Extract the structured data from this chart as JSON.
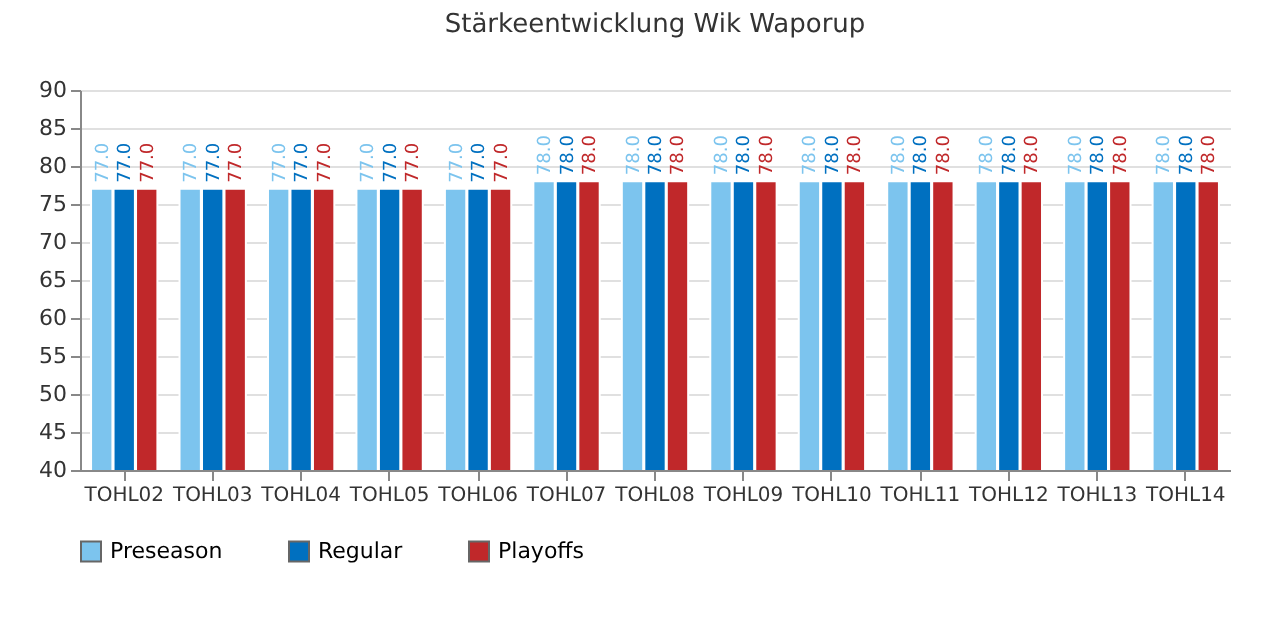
{
  "chart_data": {
    "type": "bar",
    "title": "Stärkeentwicklung Wik Waporup",
    "categories": [
      "TOHL02",
      "TOHL03",
      "TOHL04",
      "TOHL05",
      "TOHL06",
      "TOHL07",
      "TOHL08",
      "TOHL09",
      "TOHL10",
      "TOHL11",
      "TOHL12",
      "TOHL13",
      "TOHL14"
    ],
    "series": [
      {
        "name": "Preseason",
        "color": "#7cc4ee",
        "values": [
          77,
          77,
          77,
          77,
          77,
          78,
          78,
          78,
          78,
          78,
          78,
          78,
          78
        ],
        "value_labels": [
          "77.0",
          "77.0",
          "77.0",
          "77.0",
          "77.0",
          "78.0",
          "78.0",
          "78.0",
          "78.0",
          "78.0",
          "78.0",
          "78.0",
          "78.0"
        ]
      },
      {
        "name": "Regular",
        "color": "#0070c0",
        "values": [
          77,
          77,
          77,
          77,
          77,
          78,
          78,
          78,
          78,
          78,
          78,
          78,
          78
        ],
        "value_labels": [
          "77.0",
          "77.0",
          "77.0",
          "77.0",
          "77.0",
          "78.0",
          "78.0",
          "78.0",
          "78.0",
          "78.0",
          "78.0",
          "78.0",
          "78.0"
        ]
      },
      {
        "name": "Playoffs",
        "color": "#c0282a",
        "values": [
          77,
          77,
          77,
          77,
          77,
          78,
          78,
          78,
          78,
          78,
          78,
          78,
          78
        ],
        "value_labels": [
          "77.0",
          "77.0",
          "77.0",
          "77.0",
          "77.0",
          "78.0",
          "78.0",
          "78.0",
          "78.0",
          "78.0",
          "78.0",
          "78.0",
          "78.0"
        ]
      }
    ],
    "ylim": [
      40,
      90
    ],
    "yticks": [
      40,
      45,
      50,
      55,
      60,
      65,
      70,
      75,
      80,
      85,
      90
    ],
    "grid": "y",
    "legend": "bottom"
  }
}
